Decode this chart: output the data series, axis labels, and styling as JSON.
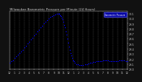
{
  "title": "Milwaukee Barometric Pressure per Minute (24 Hours)",
  "bg_color": "#111111",
  "plot_bg": "#000000",
  "dot_color": "#0000ff",
  "dot_size": 0.8,
  "legend_color": "#0000cc",
  "legend_text": "Barometric Pressure",
  "ylim": [
    29.0,
    30.15
  ],
  "xlim": [
    0,
    1440
  ],
  "ytick_values": [
    29.0,
    29.1,
    29.2,
    29.3,
    29.4,
    29.5,
    29.6,
    29.7,
    29.8,
    29.9,
    30.0,
    30.1
  ],
  "xtick_positions": [
    0,
    60,
    120,
    180,
    240,
    300,
    360,
    420,
    480,
    540,
    600,
    660,
    720,
    780,
    840,
    900,
    960,
    1020,
    1080,
    1140,
    1200,
    1260,
    1320,
    1380,
    1440
  ],
  "xtick_labels": [
    "12",
    "1",
    "2",
    "3",
    "4",
    "5",
    "6",
    "7",
    "8",
    "9",
    "10",
    "11",
    "12",
    "1",
    "2",
    "3",
    "4",
    "5",
    "6",
    "7",
    "8",
    "9",
    "10",
    "11",
    "12"
  ],
  "grid_color": "#555555",
  "text_color": "#cccccc",
  "data_x": [
    0,
    20,
    40,
    60,
    80,
    100,
    120,
    140,
    160,
    180,
    200,
    220,
    240,
    260,
    280,
    300,
    320,
    340,
    360,
    380,
    400,
    420,
    440,
    460,
    480,
    500,
    520,
    540,
    560,
    580,
    600,
    610,
    620,
    630,
    640,
    650,
    660,
    670,
    680,
    690,
    700,
    710,
    720,
    730,
    740,
    750,
    760,
    770,
    780,
    790,
    800,
    820,
    840,
    860,
    880,
    900,
    920,
    940,
    960,
    980,
    1000,
    1020,
    1040,
    1060,
    1080,
    1100,
    1120,
    1140,
    1160,
    1180,
    1200,
    1220,
    1240,
    1260,
    1280,
    1300,
    1320,
    1340,
    1360,
    1380,
    1400,
    1420,
    1440
  ],
  "data_y": [
    29.12,
    29.15,
    29.18,
    29.22,
    29.25,
    29.28,
    29.32,
    29.35,
    29.38,
    29.42,
    29.46,
    29.5,
    29.54,
    29.58,
    29.62,
    29.66,
    29.7,
    29.74,
    29.78,
    29.82,
    29.86,
    29.9,
    29.94,
    29.97,
    30.0,
    30.03,
    30.05,
    30.07,
    30.08,
    30.09,
    30.1,
    30.09,
    30.07,
    30.05,
    30.02,
    29.98,
    29.93,
    29.88,
    29.82,
    29.75,
    29.68,
    29.6,
    29.52,
    29.44,
    29.38,
    29.32,
    29.27,
    29.22,
    29.18,
    29.15,
    29.12,
    29.1,
    29.09,
    29.08,
    29.08,
    29.08,
    29.09,
    29.1,
    29.11,
    29.12,
    29.13,
    29.14,
    29.14,
    29.15,
    29.15,
    29.16,
    29.16,
    29.17,
    29.17,
    29.17,
    29.17,
    29.16,
    29.16,
    29.16,
    29.15,
    29.15,
    29.16,
    29.17,
    29.18,
    29.18,
    29.17,
    29.16,
    29.15
  ]
}
